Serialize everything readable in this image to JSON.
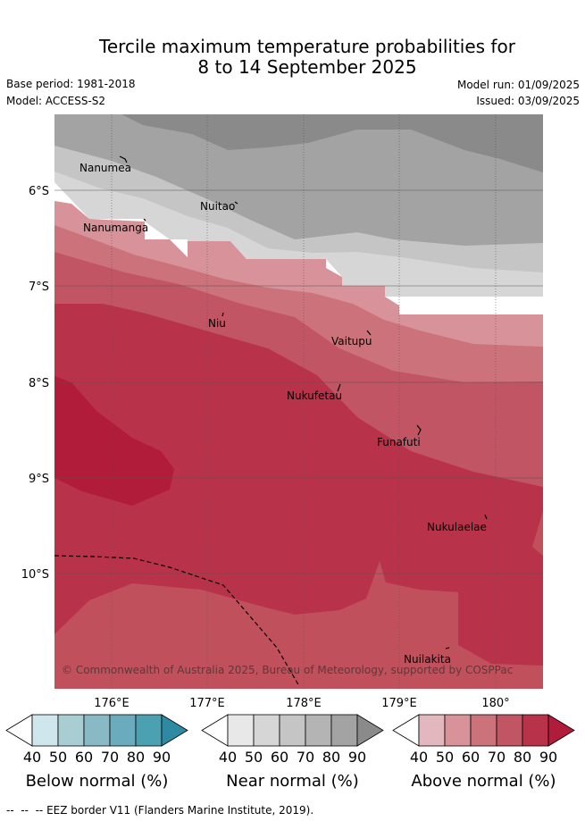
{
  "title": {
    "line1": "Tercile maximum temperature probabilities for",
    "line2": "8 to 14 September 2025"
  },
  "meta": {
    "base_period": "Base period: 1981-2018",
    "model": "Model: ACCESS-S2",
    "model_run": "Model run: 01/09/2025",
    "issued": "Issued: 03/09/2025"
  },
  "map": {
    "longitude_labels": [
      "176°E",
      "177°E",
      "178°E",
      "179°E",
      "180°"
    ],
    "latitude_labels": [
      "6°S",
      "7°S",
      "8°S",
      "9°S",
      "10°S"
    ],
    "places": [
      {
        "name": "Nanumea"
      },
      {
        "name": "Nuitao"
      },
      {
        "name": "Nanumanga"
      },
      {
        "name": "Niu"
      },
      {
        "name": "Vaitupu"
      },
      {
        "name": "Nukufetau"
      },
      {
        "name": "Funafuti"
      },
      {
        "name": "Nukulaelae"
      },
      {
        "name": "Nuilakita"
      }
    ],
    "copyright": "© Commonwealth of Australia 2025, Bureau of Meteorology, supported by COSPPac"
  },
  "colorbars": [
    {
      "title": "Below normal (%)",
      "ticks": [
        "40",
        "50",
        "60",
        "70",
        "80",
        "90"
      ],
      "colors": [
        "#ffffff",
        "#cfe6ec",
        "#a8cdd3",
        "#88b9c5",
        "#6aacbe",
        "#4ba0b2",
        "#2e8aa3"
      ]
    },
    {
      "title": "Near normal (%)",
      "ticks": [
        "40",
        "50",
        "60",
        "70",
        "80",
        "90"
      ],
      "colors": [
        "#ffffff",
        "#e8e8e8",
        "#d6d6d6",
        "#c5c5c5",
        "#b4b4b4",
        "#a3a3a3",
        "#8a8a8a"
      ]
    },
    {
      "title": "Above normal (%)",
      "ticks": [
        "40",
        "50",
        "60",
        "70",
        "80",
        "90"
      ],
      "colors": [
        "#ffffff",
        "#e2b7bd",
        "#d8939a",
        "#cc727a",
        "#c25563",
        "#b83349",
        "#b01c3a"
      ]
    }
  ],
  "legend": {
    "eez_border": "EEZ border V11 (Flanders Marine Institute, 2019)."
  }
}
